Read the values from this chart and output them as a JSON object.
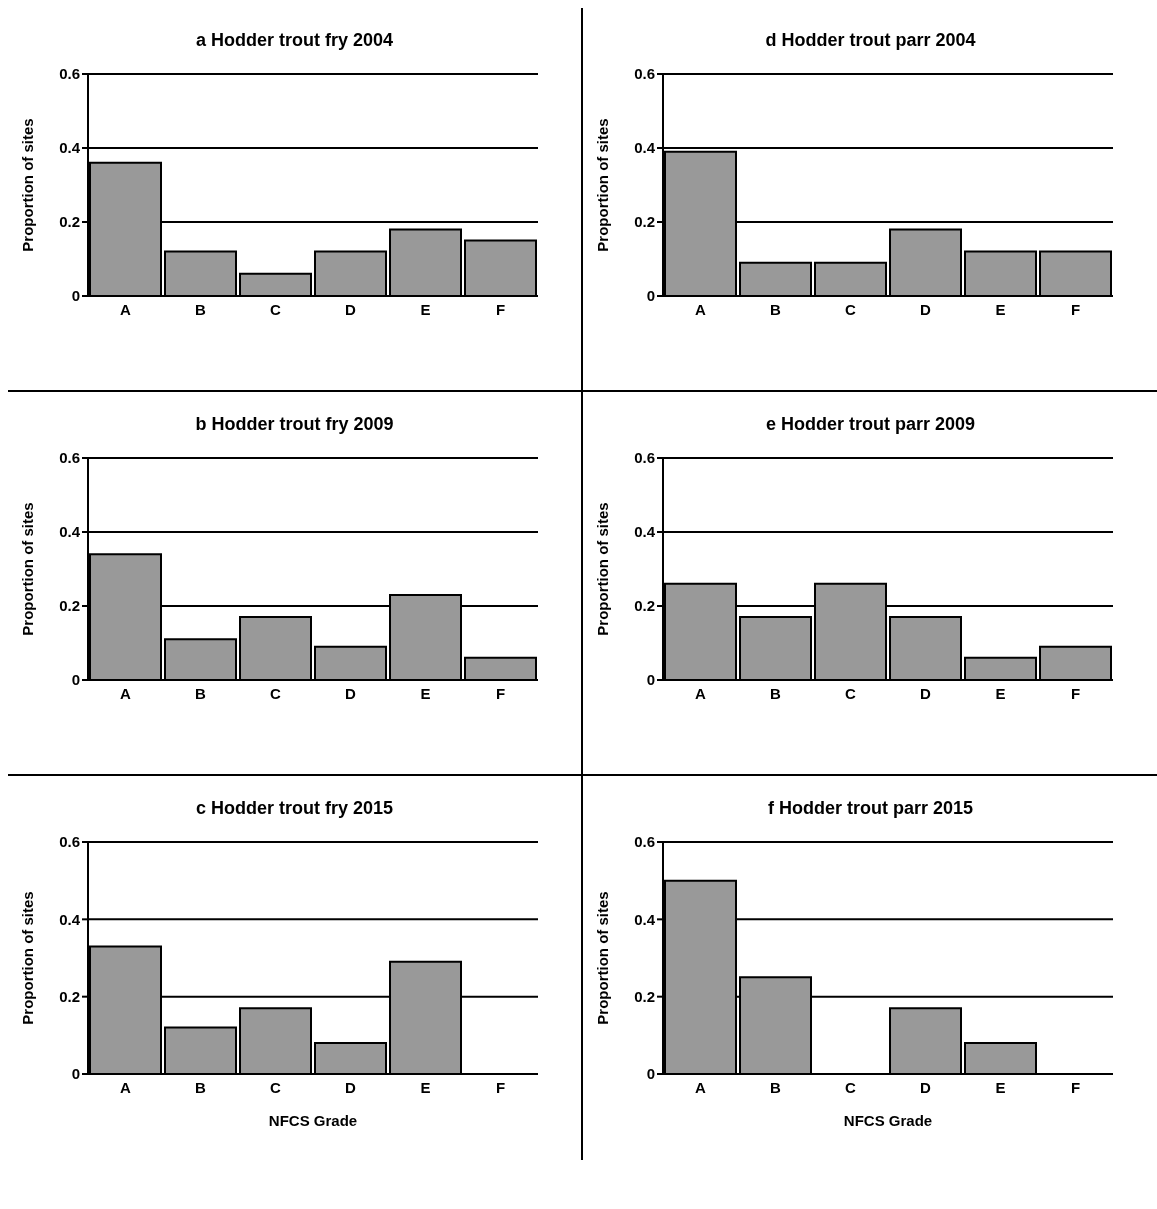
{
  "chart_data": [
    {
      "type": "bar",
      "title": "a Hodder trout fry 2004",
      "ylabel": "Proportion of sites",
      "categories": [
        "A",
        "B",
        "C",
        "D",
        "E",
        "F"
      ],
      "values": [
        0.36,
        0.12,
        0.06,
        0.12,
        0.18,
        0.15
      ],
      "color": "#999999",
      "ylim": [
        0,
        0.6
      ],
      "yticks": [
        0,
        0.2,
        0.4,
        0.6
      ],
      "grid": "y"
    },
    {
      "type": "bar",
      "title": "d Hodder trout parr 2004",
      "ylabel": "Proportion of sites",
      "categories": [
        "A",
        "B",
        "C",
        "D",
        "E",
        "F"
      ],
      "values": [
        0.39,
        0.09,
        0.09,
        0.18,
        0.12,
        0.12
      ],
      "color": "#999999",
      "ylim": [
        0,
        0.6
      ],
      "yticks": [
        0,
        0.2,
        0.4,
        0.6
      ],
      "grid": "y"
    },
    {
      "type": "bar",
      "title": "b Hodder trout fry 2009",
      "ylabel": "Proportion of sites",
      "categories": [
        "A",
        "B",
        "C",
        "D",
        "E",
        "F"
      ],
      "values": [
        0.34,
        0.11,
        0.17,
        0.09,
        0.23,
        0.06
      ],
      "color": "#999999",
      "ylim": [
        0,
        0.6
      ],
      "yticks": [
        0,
        0.2,
        0.4,
        0.6
      ],
      "grid": "y"
    },
    {
      "type": "bar",
      "title": "e Hodder trout parr 2009",
      "ylabel": "Proportion of sites",
      "categories": [
        "A",
        "B",
        "C",
        "D",
        "E",
        "F"
      ],
      "values": [
        0.26,
        0.17,
        0.26,
        0.17,
        0.06,
        0.09
      ],
      "color": "#999999",
      "ylim": [
        0,
        0.6
      ],
      "yticks": [
        0,
        0.2,
        0.4,
        0.6
      ],
      "grid": "y"
    },
    {
      "type": "bar",
      "title": "c Hodder trout fry 2015",
      "ylabel": "Proportion of sites",
      "xlabel": "NFCS Grade",
      "categories": [
        "A",
        "B",
        "C",
        "D",
        "E",
        "F"
      ],
      "values": [
        0.33,
        0.12,
        0.17,
        0.08,
        0.29,
        0
      ],
      "color": "#999999",
      "ylim": [
        0,
        0.6
      ],
      "yticks": [
        0,
        0.2,
        0.4,
        0.6
      ],
      "grid": "y"
    },
    {
      "type": "bar",
      "title": "f Hodder trout parr 2015",
      "ylabel": "Proportion of sites",
      "xlabel": "NFCS Grade",
      "categories": [
        "A",
        "B",
        "C",
        "D",
        "E",
        "F"
      ],
      "values": [
        0.5,
        0.25,
        0,
        0.17,
        0.08,
        0
      ],
      "color": "#999999",
      "ylim": [
        0,
        0.6
      ],
      "yticks": [
        0,
        0.2,
        0.4,
        0.6
      ],
      "grid": "y"
    }
  ]
}
